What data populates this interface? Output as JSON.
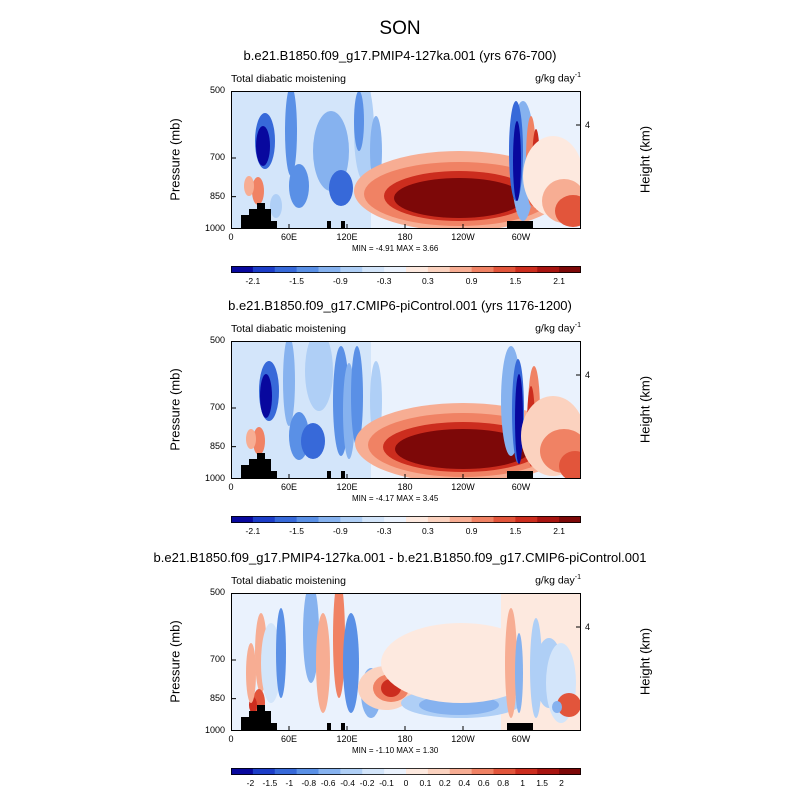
{
  "title": "SON",
  "colors": [
    "#08089e",
    "#1c3dc8",
    "#3769d9",
    "#5a90e6",
    "#86b2ef",
    "#afcff6",
    "#d3e5fa",
    "#eaf2fd",
    "#fde9df",
    "#fbd2bf",
    "#f7ad93",
    "#f08264",
    "#e2553b",
    "#cc2d1e",
    "#a81410",
    "#7d0808"
  ],
  "panels": [
    {
      "title": "b.e21.B1850.f09_g17.PMIP4-127ka.001 (yrs 676-700)",
      "field_label": "Total diabatic moistening",
      "units": "g/kg day",
      "units_exp": "-1",
      "ylabel": "Pressure (mb)",
      "ylabel_right": "Height (km)",
      "yticks": [
        "500",
        "700",
        "850",
        "1000"
      ],
      "xticks": [
        "0",
        "60E",
        "120E",
        "180",
        "120W",
        "60W"
      ],
      "height_tick": "4",
      "min_label": "MIN =  -4.91",
      "max_label": "MAX =   3.66",
      "cbar_labels": [
        "-2.1",
        "-1.5",
        "-0.9",
        "-0.3",
        "0.3",
        "0.9",
        "1.5",
        "2.1"
      ]
    },
    {
      "title": "b.e21.B1850.f09_g17.CMIP6-piControl.001 (yrs 1176-1200)",
      "field_label": "Total diabatic moistening",
      "units": "g/kg day",
      "units_exp": "-1",
      "ylabel": "Pressure (mb)",
      "ylabel_right": "Height (km)",
      "yticks": [
        "500",
        "700",
        "850",
        "1000"
      ],
      "xticks": [
        "0",
        "60E",
        "120E",
        "180",
        "120W",
        "60W"
      ],
      "height_tick": "4",
      "min_label": "MIN =  -4.17",
      "max_label": "MAX =   3.45",
      "cbar_labels": [
        "-2.1",
        "-1.5",
        "-0.9",
        "-0.3",
        "0.3",
        "0.9",
        "1.5",
        "2.1"
      ]
    },
    {
      "title": "b.e21.B1850.f09_g17.PMIP4-127ka.001 - b.e21.B1850.f09_g17.CMIP6-piControl.001",
      "field_label": "Total diabatic moistening",
      "units": "g/kg day",
      "units_exp": "-1",
      "ylabel": "Pressure (mb)",
      "ylabel_right": "Height (km)",
      "yticks": [
        "500",
        "700",
        "850",
        "1000"
      ],
      "xticks": [
        "0",
        "60E",
        "120E",
        "180",
        "120W",
        "60W"
      ],
      "height_tick": "4",
      "min_label": "MIN =  -1.10",
      "max_label": "MAX =   1.30",
      "cbar_labels": [
        "-2",
        "-1.5",
        "-1",
        "-0.8",
        "-0.6",
        "-0.4",
        "-0.2",
        "-0.1",
        "0",
        "0.1",
        "0.2",
        "0.4",
        "0.6",
        "0.8",
        "1",
        "1.5",
        "2"
      ]
    }
  ],
  "chart_data": [
    {
      "type": "heatmap",
      "title": "b.e21.B1850.f09_g17.PMIP4-127ka.001 (yrs 676-700)",
      "subtitle": "Total diabatic moistening",
      "units": "g/kg day-1",
      "xlabel": "",
      "ylabel": "Pressure (mb)",
      "ylabel_right": "Height (km)",
      "x_ticks": [
        "0",
        "60E",
        "120E",
        "180",
        "120W",
        "60W"
      ],
      "y_ticks": [
        500,
        700,
        850,
        1000
      ],
      "y_scale": "log",
      "ylim": [
        1000,
        500
      ],
      "min": -4.91,
      "max": 3.66,
      "colorbar_levels": [
        -2.1,
        -1.8,
        -1.5,
        -1.2,
        -0.9,
        -0.6,
        -0.3,
        0,
        0.3,
        0.6,
        0.9,
        1.2,
        1.5,
        1.8,
        2.1
      ]
    },
    {
      "type": "heatmap",
      "title": "b.e21.B1850.f09_g17.CMIP6-piControl.001 (yrs 1176-1200)",
      "subtitle": "Total diabatic moistening",
      "units": "g/kg day-1",
      "xlabel": "",
      "ylabel": "Pressure (mb)",
      "ylabel_right": "Height (km)",
      "x_ticks": [
        "0",
        "60E",
        "120E",
        "180",
        "120W",
        "60W"
      ],
      "y_ticks": [
        500,
        700,
        850,
        1000
      ],
      "y_scale": "log",
      "ylim": [
        1000,
        500
      ],
      "min": -4.17,
      "max": 3.45,
      "colorbar_levels": [
        -2.1,
        -1.8,
        -1.5,
        -1.2,
        -0.9,
        -0.6,
        -0.3,
        0,
        0.3,
        0.6,
        0.9,
        1.2,
        1.5,
        1.8,
        2.1
      ]
    },
    {
      "type": "heatmap",
      "title": "b.e21.B1850.f09_g17.PMIP4-127ka.001 - b.e21.B1850.f09_g17.CMIP6-piControl.001",
      "subtitle": "Total diabatic moistening",
      "units": "g/kg day-1",
      "xlabel": "",
      "ylabel": "Pressure (mb)",
      "ylabel_right": "Height (km)",
      "x_ticks": [
        "0",
        "60E",
        "120E",
        "180",
        "120W",
        "60W"
      ],
      "y_ticks": [
        500,
        700,
        850,
        1000
      ],
      "y_scale": "log",
      "ylim": [
        1000,
        500
      ],
      "min": -1.1,
      "max": 1.3,
      "colorbar_levels": [
        -2,
        -1.5,
        -1,
        -0.8,
        -0.6,
        -0.4,
        -0.2,
        -0.1,
        0,
        0.1,
        0.2,
        0.4,
        0.6,
        0.8,
        1,
        1.5,
        2
      ]
    }
  ]
}
